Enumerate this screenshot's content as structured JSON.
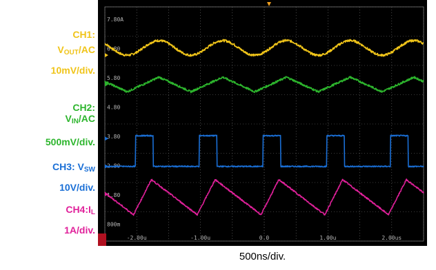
{
  "channels": [
    {
      "id": "ch1",
      "color": "#f0c419",
      "line1_a": "CH1:",
      "line2_a": "V",
      "line2_sub": "OUT",
      "line2_b": "/AC",
      "line3": "10mV/div."
    },
    {
      "id": "ch2",
      "color": "#2db52d",
      "line1_a": "CH2:",
      "line2_a": "V",
      "line2_sub": "IN",
      "line2_b": "/AC",
      "line3": "500mV/div."
    },
    {
      "id": "ch3",
      "color": "#1a6fd6",
      "line1_a": "CH3: V",
      "line1_sub": "SW",
      "line3": "10V/div."
    },
    {
      "id": "ch4",
      "color": "#e0209a",
      "line1_a": "CH4:I",
      "line1_sub": "L",
      "line3": "1A/div."
    }
  ],
  "scope": {
    "y_labels": [
      "7.80A",
      "6.80",
      "5.80",
      "4.80",
      "3.80",
      "2.80",
      "1.80",
      "800m"
    ],
    "x_labels": [
      "-2.00u",
      "-1.00u",
      "0.0",
      "1.00u",
      "2.00us"
    ],
    "timebase": "500ns/div.",
    "grid_color": "#7a7a7a",
    "background": "#000000",
    "trigger_color": "#f0a020"
  },
  "chart_data": {
    "type": "line",
    "x_unit": "s",
    "xlim": [
      -2.5e-06,
      2.5e-06
    ],
    "series": [
      {
        "name": "CH1: VOUT/AC",
        "color": "#f0c419",
        "shape": "sine",
        "period": 1e-06,
        "level_div": 6.8,
        "amp_div": 0.25
      },
      {
        "name": "CH2: VIN/AC",
        "color": "#2db52d",
        "shape": "triangle",
        "period": 1e-06,
        "level_div": 5.55,
        "amp_div": 0.25
      },
      {
        "name": "CH3: VSW",
        "color": "#1a6fd6",
        "shape": "square",
        "period": 1e-06,
        "high_div": 3.8,
        "low_div": 2.75,
        "duty": 0.28
      },
      {
        "name": "CH4: IL",
        "color": "#e0209a",
        "shape": "triangle",
        "period": 1e-06,
        "low_div": 1.1,
        "high_div": 2.3,
        "rise_fraction": 0.28
      }
    ]
  }
}
